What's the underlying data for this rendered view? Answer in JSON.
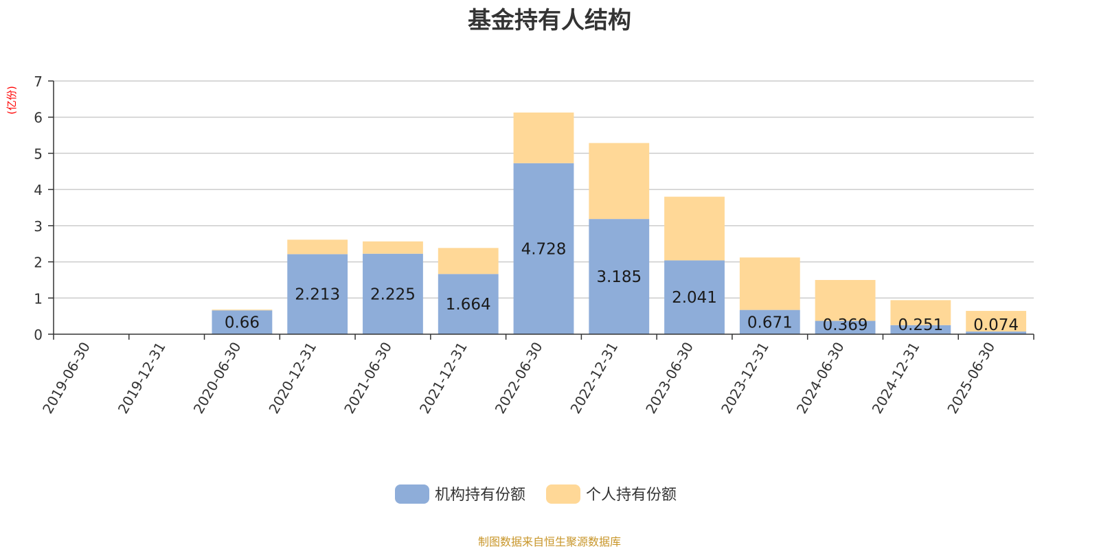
{
  "chart_data": {
    "type": "bar",
    "stacked": true,
    "title": "基金持有人结构",
    "ylabel": "(亿份)",
    "xlabel": "",
    "ylim": [
      0,
      7
    ],
    "yticks": [
      0,
      1,
      2,
      3,
      4,
      5,
      6,
      7
    ],
    "grid": true,
    "legend_position": "bottom",
    "categories": [
      "2019-06-30",
      "2019-12-31",
      "2020-06-30",
      "2020-12-31",
      "2021-06-30",
      "2021-12-31",
      "2022-06-30",
      "2022-12-31",
      "2023-06-30",
      "2023-12-31",
      "2024-06-30",
      "2024-12-31",
      "2025-06-30"
    ],
    "series": [
      {
        "name": "机构持有份额",
        "color": "#8eadd9",
        "values": [
          0,
          0,
          0.66,
          2.213,
          2.225,
          1.664,
          4.728,
          3.185,
          2.041,
          0.671,
          0.369,
          0.251,
          0.074
        ],
        "labels": [
          "",
          "",
          "0.66",
          "2.213",
          "2.225",
          "1.664",
          "4.728",
          "3.185",
          "2.041",
          "0.671",
          "0.369",
          "0.251",
          "0.074"
        ]
      },
      {
        "name": "个人持有份额",
        "color": "#ffd897",
        "values": [
          0,
          0,
          0.02,
          0.4,
          0.34,
          0.72,
          1.4,
          2.1,
          1.76,
          1.45,
          1.13,
          0.69,
          0.57
        ]
      }
    ]
  },
  "footer": {
    "source": "制图数据来自恒生聚源数据库"
  },
  "colors": {
    "title": "#333333",
    "ylabel": "#ff0000",
    "source": "#c8962a",
    "grid": "#cccccc",
    "axis": "#333333"
  }
}
